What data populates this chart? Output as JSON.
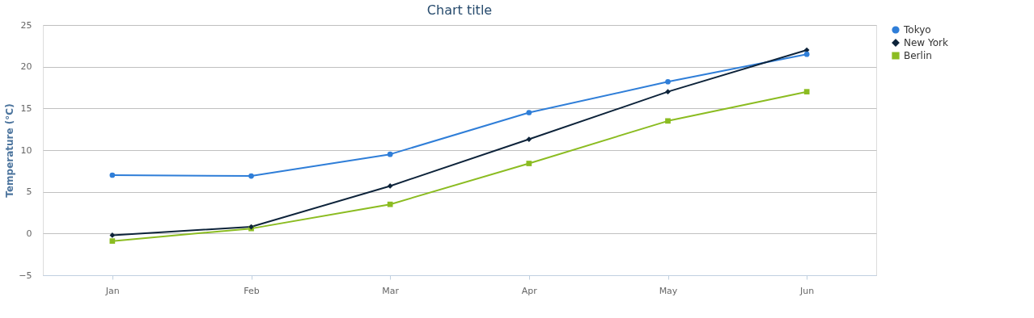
{
  "chart_data": {
    "type": "line",
    "title": "Chart title",
    "ylabel": "Temperature (°C)",
    "categories": [
      "Jan",
      "Feb",
      "Mar",
      "Apr",
      "May",
      "Jun"
    ],
    "series": [
      {
        "name": "Tokyo",
        "color": "#2f7ed8",
        "marker": "circle",
        "values": [
          7.0,
          6.9,
          9.5,
          14.5,
          18.2,
          21.5
        ]
      },
      {
        "name": "New York",
        "color": "#0d233a",
        "marker": "diamond",
        "values": [
          -0.2,
          0.8,
          5.7,
          11.3,
          17.0,
          22.0
        ]
      },
      {
        "name": "Berlin",
        "color": "#8bbc21",
        "marker": "square",
        "values": [
          -0.9,
          0.6,
          3.5,
          8.4,
          13.5,
          17.0
        ]
      }
    ],
    "ylim": [
      -5,
      25
    ],
    "yticks": [
      -5,
      0,
      5,
      10,
      15,
      20,
      25
    ],
    "grid": "y",
    "legend": "right",
    "line_style": "solid"
  }
}
